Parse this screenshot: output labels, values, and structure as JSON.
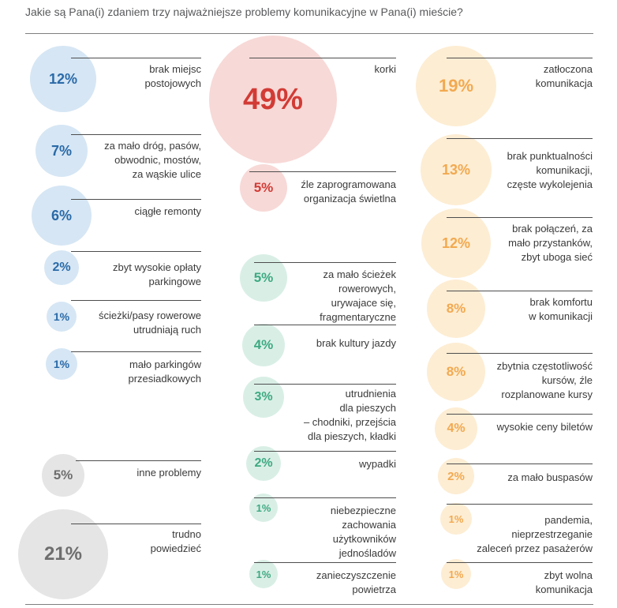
{
  "title": "Jakie są Pana(i) zdaniem trzy najważniejsze problemy komunikacyjne w Pana(i) mieście?",
  "colors": {
    "blue": {
      "fill": "#d6e6f4",
      "text": "#2a6aa8"
    },
    "red": {
      "fill": "#f7d9d7",
      "text": "#d23b35"
    },
    "green": {
      "fill": "#d9efe6",
      "text": "#3ea982"
    },
    "orange": {
      "fill": "#fdedd3",
      "text": "#f2a950"
    },
    "gray": {
      "fill": "#e5e5e5",
      "text": "#6e6e6e"
    }
  },
  "chart_data": {
    "type": "bubble",
    "title": "Jakie są Pana(i) zdaniem trzy najważniejsze problemy komunikacyjne w Pana(i) mieście?",
    "unit": "%",
    "items": [
      {
        "label": "brak miejsc\npostojowych",
        "value": 12,
        "value_text": "12%",
        "group": "blue"
      },
      {
        "label": "za mało dróg, pasów,\nobwodnic, mostów,\nza wąskie ulice",
        "value": 7,
        "value_text": "7%",
        "group": "blue"
      },
      {
        "label": "ciągłe remonty",
        "value": 6,
        "value_text": "6%",
        "group": "blue"
      },
      {
        "label": "zbyt wysokie opłaty\nparkingowe",
        "value": 2,
        "value_text": "2%",
        "group": "blue"
      },
      {
        "label": "ścieżki/pasy rowerowe\nutrudniają ruch",
        "value": 1,
        "value_text": "1%",
        "group": "blue"
      },
      {
        "label": "mało parkingów\nprzesiadkowych",
        "value": 1,
        "value_text": "1%",
        "group": "blue"
      },
      {
        "label": "inne problemy",
        "value": 5,
        "value_text": "5%",
        "group": "gray"
      },
      {
        "label": "trudno\npowiedzieć",
        "value": 21,
        "value_text": "21%",
        "group": "gray"
      },
      {
        "label": "korki",
        "value": 49,
        "value_text": "49%",
        "group": "red"
      },
      {
        "label": "źle zaprogramowana\norganizacja świetlna",
        "value": 5,
        "value_text": "5%",
        "group": "red"
      },
      {
        "label": "za mało ścieżek\nrowerowych,\nurywajace się,\nfragmentaryczne",
        "value": 5,
        "value_text": "5%",
        "group": "green"
      },
      {
        "label": "brak kultury jazdy",
        "value": 4,
        "value_text": "4%",
        "group": "green"
      },
      {
        "label": "utrudnienia\ndla pieszych\n– chodniki, przejścia\ndla pieszych, kładki",
        "value": 3,
        "value_text": "3%",
        "group": "green"
      },
      {
        "label": "wypadki",
        "value": 2,
        "value_text": "2%",
        "group": "green"
      },
      {
        "label": "niebezpieczne\nzachowania\nużytkowników\njednośladów",
        "value": 1,
        "value_text": "1%",
        "group": "green"
      },
      {
        "label": "zanieczyszczenie\npowietrza",
        "value": 1,
        "value_text": "1%",
        "group": "green"
      },
      {
        "label": "zatłoczona\nkomunikacja",
        "value": 19,
        "value_text": "19%",
        "group": "orange"
      },
      {
        "label": "brak punktualności\nkomunikacji,\nczęste wykolejenia",
        "value": 13,
        "value_text": "13%",
        "group": "orange"
      },
      {
        "label": "brak połączeń, za\nmało przystanków,\nzbyt uboga sieć",
        "value": 12,
        "value_text": "12%",
        "group": "orange"
      },
      {
        "label": "brak komfortu\nw komunikacji",
        "value": 8,
        "value_text": "8%",
        "group": "orange"
      },
      {
        "label": "zbytnia częstotliwość\nkursów, źle\nrozplanowane kursy",
        "value": 8,
        "value_text": "8%",
        "group": "orange"
      },
      {
        "label": "wysokie ceny biletów",
        "value": 4,
        "value_text": "4%",
        "group": "orange"
      },
      {
        "label": "za mało buspasów",
        "value": 2,
        "value_text": "2%",
        "group": "orange"
      },
      {
        "label": "pandemia,\nnieprzestrzeganie\nzaleceń przez pasażerów",
        "value": 1,
        "value_text": "1%",
        "group": "orange"
      },
      {
        "label": "zbyt wolna\nkomunikacja",
        "value": 1,
        "value_text": "1%",
        "group": "orange"
      }
    ]
  }
}
